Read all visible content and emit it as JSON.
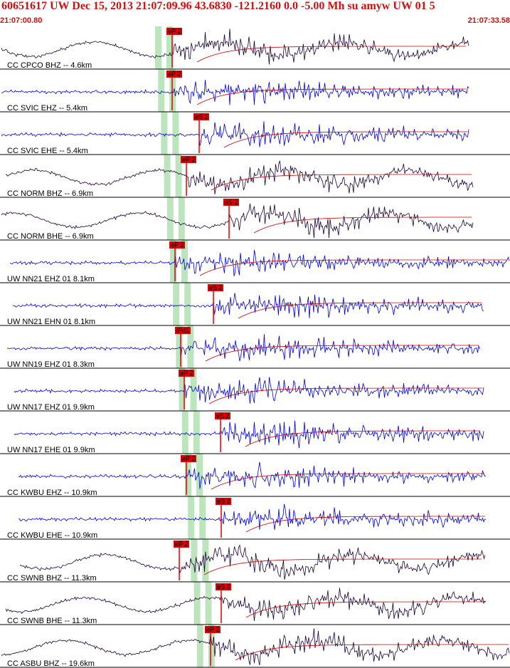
{
  "header": {
    "title": "60651617 UW Dec 15, 2013 21:07:09.96   43.6830 -121.2160  0.0 -5.00 Mh su amyw UW 01   5",
    "start_time": "21:07:00.80",
    "end_time": "21:07:33.58"
  },
  "colors": {
    "title": "#cc1111",
    "trace_blue": "#0000cc",
    "trace_dark": "#1a0033",
    "pick_box": "#dd0000",
    "window_band": "#bde5bd",
    "fit_curve": "#cc0000"
  },
  "traces": [
    {
      "label": "CC CPCO BHZ -- 4.6km",
      "pick": "eP 2",
      "color": "dark"
    },
    {
      "label": "CC SVIC EHZ -- 5.4km",
      "pick": "eP 2",
      "color": "blue"
    },
    {
      "label": "CC SVIC EHE -- 5.4km",
      "pick": "eS 2",
      "color": "blue"
    },
    {
      "label": "CC NORM BHZ -- 6.9km",
      "pick": "eP 2",
      "color": "dark"
    },
    {
      "label": "CC NORM BHE -- 6.9km",
      "pick": "eS 2",
      "color": "dark"
    },
    {
      "label": "UW NN21 EHZ 01 8.1km",
      "pick": "eP 2",
      "color": "blue"
    },
    {
      "label": "UW NN21 EHN 01 8.1km",
      "pick": "eS 2",
      "color": "blue"
    },
    {
      "label": "UW NN19 EHZ 01 8.3km",
      "pick": "iPd1",
      "color": "blue"
    },
    {
      "label": "UW NN17 EHZ 01 9.9km",
      "pick": "eP 2",
      "color": "blue"
    },
    {
      "label": "UW NN17 EHE 01 9.9km",
      "pick": "eS 2",
      "color": "blue"
    },
    {
      "label": "CC KWBU EHZ -- 10.9km",
      "pick": "eP 2",
      "color": "blue"
    },
    {
      "label": "CC KWBU EHE -- 10.9km",
      "pick": "eS 2",
      "color": "blue"
    },
    {
      "label": "CC SWNB BHZ -- 11.3km",
      "pick": "eP 2",
      "color": "dark"
    },
    {
      "label": "CC SWNB BHE -- 11.3km",
      "pick": "eS 2",
      "color": "dark"
    },
    {
      "label": "CC ASBU BHZ -- 19.6km",
      "pick": "eP 2",
      "color": "dark"
    }
  ]
}
